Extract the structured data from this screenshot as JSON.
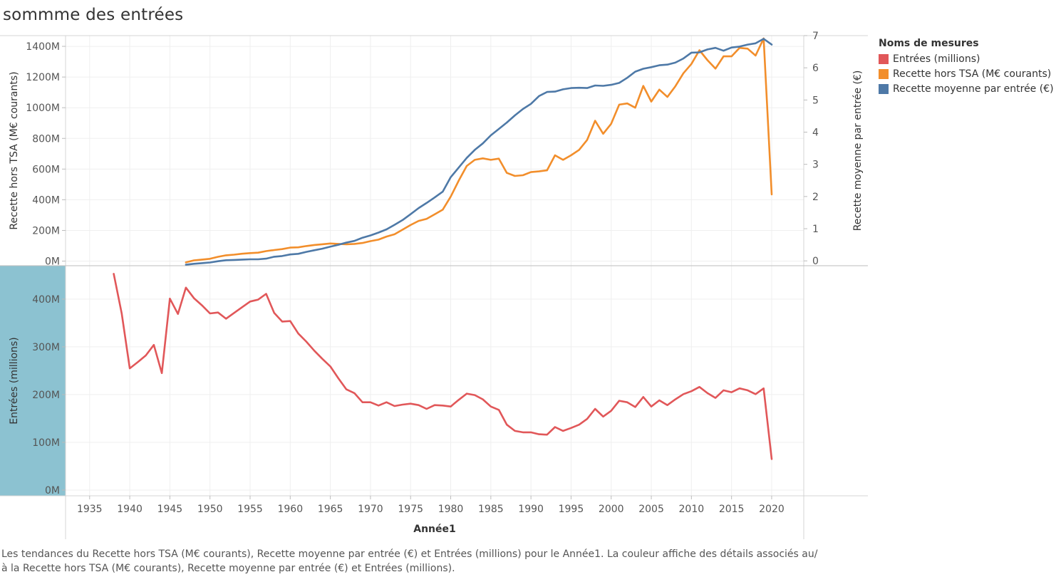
{
  "title": "sommme des entrées",
  "legend": {
    "title": "Noms de mesures",
    "items": [
      {
        "label": "Entrées (millions)",
        "color": "#e15759"
      },
      {
        "label": "Recette hors TSA (M€ courants)",
        "color": "#f28e2b"
      },
      {
        "label": "Recette moyenne par entrée (€)",
        "color": "#4e79a7"
      }
    ]
  },
  "caption": "Les tendances du Recette hors TSA (M€ courants), Recette moyenne par entrée (€) et Entrées (millions) pour le Année1.  La couleur affiche des détails associés au/à la Recette hors TSA (M€ courants), Recette moyenne par entrée (€) et Entrées (millions).",
  "chart_data": {
    "type": "line",
    "xlabel": "Année1",
    "xlim": [
      1932,
      2024
    ],
    "x_ticks": [
      1935,
      1940,
      1945,
      1950,
      1955,
      1960,
      1965,
      1970,
      1975,
      1980,
      1985,
      1990,
      1995,
      2000,
      2005,
      2010,
      2015,
      2020
    ],
    "top_panel": {
      "ylabel_left": "Recette hors TSA (M€ courants)",
      "ylabel_right": "Recette moyenne par entrée (€)",
      "left_ticks": [
        "0M",
        "200M",
        "400M",
        "600M",
        "800M",
        "1000M",
        "1200M",
        "1400M"
      ],
      "left_tick_values": [
        0,
        200,
        400,
        600,
        800,
        1000,
        1200,
        1400
      ],
      "left_ylim": [
        -30,
        1470
      ],
      "right_ticks": [
        "0",
        "1",
        "2",
        "3",
        "4",
        "5",
        "6",
        "7"
      ],
      "right_tick_values": [
        0,
        1,
        2,
        3,
        4,
        5,
        6,
        7
      ],
      "right_ylim": [
        -0.15,
        7.0
      ],
      "series": [
        {
          "name": "Recette hors TSA (M€ courants)",
          "color": "#f28e2b",
          "axis": "left",
          "x": [
            1947,
            1948,
            1949,
            1950,
            1951,
            1952,
            1953,
            1954,
            1955,
            1956,
            1957,
            1958,
            1959,
            1960,
            1961,
            1962,
            1963,
            1964,
            1965,
            1966,
            1967,
            1968,
            1969,
            1970,
            1971,
            1972,
            1973,
            1974,
            1975,
            1976,
            1977,
            1978,
            1979,
            1980,
            1981,
            1982,
            1983,
            1984,
            1985,
            1986,
            1987,
            1988,
            1989,
            1990,
            1991,
            1992,
            1993,
            1994,
            1995,
            1996,
            1997,
            1998,
            1999,
            2000,
            2001,
            2002,
            2003,
            2004,
            2005,
            2006,
            2007,
            2008,
            2009,
            2010,
            2011,
            2012,
            2013,
            2014,
            2015,
            2016,
            2017,
            2018,
            2019,
            2020
          ],
          "y": [
            -8,
            5,
            10,
            15,
            28,
            38,
            42,
            48,
            52,
            55,
            65,
            72,
            78,
            88,
            90,
            98,
            105,
            110,
            115,
            112,
            110,
            112,
            118,
            130,
            140,
            160,
            175,
            205,
            235,
            262,
            275,
            305,
            335,
            420,
            525,
            620,
            660,
            670,
            660,
            668,
            575,
            555,
            560,
            580,
            585,
            592,
            690,
            660,
            690,
            725,
            790,
            915,
            830,
            895,
            1020,
            1028,
            1000,
            1142,
            1040,
            1118,
            1070,
            1140,
            1225,
            1285,
            1375,
            1310,
            1255,
            1335,
            1335,
            1390,
            1385,
            1340,
            1452,
            435
          ]
        },
        {
          "name": "Recette moyenne par entrée (€)",
          "color": "#4e79a7",
          "axis": "right",
          "x": [
            1947,
            1948,
            1949,
            1950,
            1951,
            1952,
            1953,
            1954,
            1955,
            1956,
            1957,
            1958,
            1959,
            1960,
            1961,
            1962,
            1963,
            1964,
            1965,
            1966,
            1967,
            1968,
            1969,
            1970,
            1971,
            1972,
            1973,
            1974,
            1975,
            1976,
            1977,
            1978,
            1979,
            1980,
            1981,
            1982,
            1983,
            1984,
            1985,
            1986,
            1987,
            1988,
            1989,
            1990,
            1991,
            1992,
            1993,
            1994,
            1995,
            1996,
            1997,
            1998,
            1999,
            2000,
            2001,
            2002,
            2003,
            2004,
            2005,
            2006,
            2007,
            2008,
            2009,
            2010,
            2011,
            2012,
            2013,
            2014,
            2015,
            2016,
            2017,
            2018,
            2019,
            2020
          ],
          "y": [
            -0.12,
            -0.09,
            -0.07,
            -0.05,
            -0.01,
            0.02,
            0.03,
            0.04,
            0.05,
            0.05,
            0.07,
            0.13,
            0.15,
            0.2,
            0.22,
            0.28,
            0.33,
            0.38,
            0.44,
            0.5,
            0.57,
            0.62,
            0.72,
            0.79,
            0.88,
            0.98,
            1.12,
            1.27,
            1.45,
            1.64,
            1.8,
            1.97,
            2.15,
            2.6,
            2.9,
            3.2,
            3.45,
            3.65,
            3.9,
            4.1,
            4.3,
            4.52,
            4.72,
            4.88,
            5.12,
            5.25,
            5.26,
            5.33,
            5.37,
            5.38,
            5.37,
            5.45,
            5.44,
            5.47,
            5.53,
            5.69,
            5.88,
            5.97,
            6.02,
            6.08,
            6.1,
            6.16,
            6.29,
            6.47,
            6.48,
            6.57,
            6.62,
            6.53,
            6.63,
            6.66,
            6.72,
            6.76,
            6.9,
            6.72
          ]
        }
      ]
    },
    "bottom_panel": {
      "ylabel": "Entrées (millions)",
      "ticks": [
        "0M",
        "100M",
        "200M",
        "300M",
        "400M"
      ],
      "tick_values": [
        0,
        100,
        200,
        300,
        400
      ],
      "ylim": [
        -12,
        470
      ],
      "series": [
        {
          "name": "Entrées (millions)",
          "color": "#e15759",
          "x": [
            1938,
            1939,
            1940,
            1941,
            1942,
            1943,
            1944,
            1945,
            1946,
            1947,
            1948,
            1949,
            1950,
            1951,
            1952,
            1953,
            1954,
            1955,
            1956,
            1957,
            1958,
            1959,
            1960,
            1961,
            1962,
            1963,
            1964,
            1965,
            1966,
            1967,
            1968,
            1969,
            1970,
            1971,
            1972,
            1973,
            1974,
            1975,
            1976,
            1977,
            1978,
            1979,
            1980,
            1981,
            1982,
            1983,
            1984,
            1985,
            1986,
            1987,
            1988,
            1989,
            1990,
            1991,
            1992,
            1993,
            1994,
            1995,
            1996,
            1997,
            1998,
            1999,
            2000,
            2001,
            2002,
            2003,
            2004,
            2005,
            2006,
            2007,
            2008,
            2009,
            2010,
            2011,
            2012,
            2013,
            2014,
            2015,
            2016,
            2017,
            2018,
            2019,
            2020
          ],
          "y": [
            453,
            370,
            255,
            268,
            282,
            304,
            245,
            401,
            369,
            424,
            402,
            387,
            370,
            372,
            359,
            371,
            383,
            395,
            399,
            411,
            371,
            353,
            354,
            328,
            311,
            292,
            275,
            259,
            234,
            211,
            203,
            184,
            184,
            177,
            184,
            176,
            179,
            181,
            178,
            170,
            178,
            177,
            175,
            189,
            202,
            199,
            190,
            175,
            168,
            137,
            124,
            121,
            121,
            117,
            116,
            132,
            124,
            130,
            137,
            149,
            170,
            154,
            166,
            187,
            184,
            174,
            195,
            175,
            188,
            178,
            190,
            201,
            207,
            216,
            203,
            193,
            209,
            205,
            213,
            209,
            201,
            213,
            65
          ]
        }
      ]
    }
  }
}
